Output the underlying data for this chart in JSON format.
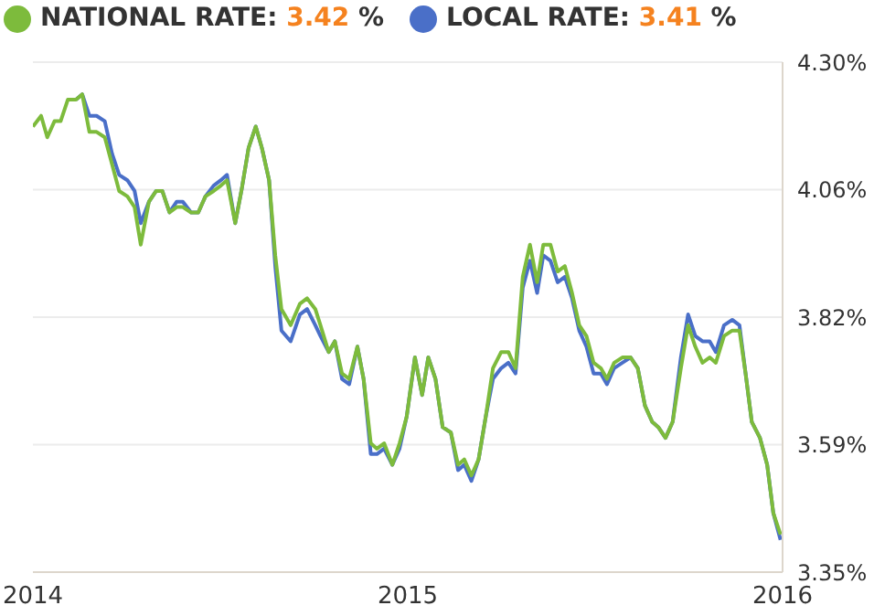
{
  "chart_data": {
    "type": "line",
    "x": [
      "2014-01-01",
      "2014-01-09",
      "2014-01-15",
      "2014-01-22",
      "2014-01-28",
      "2014-02-04",
      "2014-02-12",
      "2014-02-18",
      "2014-02-25",
      "2014-03-04",
      "2014-03-12",
      "2014-03-19",
      "2014-03-26",
      "2014-04-03",
      "2014-04-10",
      "2014-04-16",
      "2014-04-24",
      "2014-05-01",
      "2014-05-07",
      "2014-05-14",
      "2014-05-21",
      "2014-05-27",
      "2014-06-04",
      "2014-06-11",
      "2014-06-18",
      "2014-06-26",
      "2014-07-03",
      "2014-07-09",
      "2014-07-17",
      "2014-07-23",
      "2014-07-30",
      "2014-08-06",
      "2014-08-12",
      "2014-08-19",
      "2014-08-25",
      "2014-08-31",
      "2014-09-09",
      "2014-09-18",
      "2014-09-25",
      "2014-10-03",
      "2014-10-08",
      "2014-10-16",
      "2014-10-22",
      "2014-10-29",
      "2014-11-05",
      "2014-11-13",
      "2014-11-19",
      "2014-11-26",
      "2014-12-02",
      "2014-12-09",
      "2014-12-17",
      "2014-12-24",
      "2014-12-31",
      "2015-01-08",
      "2015-01-15",
      "2015-01-21",
      "2015-01-28",
      "2015-02-04",
      "2015-02-12",
      "2015-02-19",
      "2015-02-25",
      "2015-03-04",
      "2015-03-11",
      "2015-03-18",
      "2015-03-25",
      "2015-04-02",
      "2015-04-09",
      "2015-04-16",
      "2015-04-23",
      "2015-04-30",
      "2015-05-07",
      "2015-05-13",
      "2015-05-20",
      "2015-05-27",
      "2015-06-03",
      "2015-06-10",
      "2015-06-17",
      "2015-06-24",
      "2015-07-01",
      "2015-07-08",
      "2015-07-14",
      "2015-07-21",
      "2015-07-29",
      "2015-08-06",
      "2015-08-13",
      "2015-08-20",
      "2015-08-27",
      "2015-09-02",
      "2015-09-09",
      "2015-09-16",
      "2015-09-24",
      "2015-10-01",
      "2015-10-08",
      "2015-10-15",
      "2015-10-22",
      "2015-10-28",
      "2015-11-05",
      "2015-11-13",
      "2015-11-20",
      "2015-11-26",
      "2015-12-02",
      "2015-12-10",
      "2015-12-17",
      "2015-12-23",
      "2015-12-30"
    ],
    "series": [
      {
        "name": "NATIONAL RATE: 3.42 %",
        "color": "#7dbb3c",
        "values": [
          4.18,
          4.2,
          4.16,
          4.19,
          4.19,
          4.23,
          4.23,
          4.24,
          4.17,
          4.17,
          4.16,
          4.11,
          4.06,
          4.05,
          4.03,
          3.96,
          4.04,
          4.06,
          4.06,
          4.02,
          4.03,
          4.03,
          4.02,
          4.02,
          4.05,
          4.06,
          4.07,
          4.08,
          4.0,
          4.06,
          4.14,
          4.18,
          4.14,
          4.08,
          3.94,
          3.84,
          3.81,
          3.85,
          3.86,
          3.84,
          3.81,
          3.76,
          3.78,
          3.72,
          3.71,
          3.77,
          3.71,
          3.59,
          3.58,
          3.59,
          3.55,
          3.59,
          3.64,
          3.75,
          3.68,
          3.75,
          3.71,
          3.62,
          3.61,
          3.55,
          3.56,
          3.53,
          3.56,
          3.64,
          3.73,
          3.76,
          3.76,
          3.73,
          3.9,
          3.96,
          3.89,
          3.96,
          3.96,
          3.91,
          3.92,
          3.87,
          3.81,
          3.79,
          3.74,
          3.73,
          3.71,
          3.74,
          3.75,
          3.75,
          3.73,
          3.66,
          3.63,
          3.62,
          3.6,
          3.63,
          3.73,
          3.81,
          3.77,
          3.74,
          3.75,
          3.74,
          3.79,
          3.8,
          3.8,
          3.72,
          3.63,
          3.6,
          3.55,
          3.46,
          3.42
        ]
      },
      {
        "name": "LOCAL RATE: 3.41 %",
        "color": "#4a6fc8",
        "values": [
          null,
          null,
          null,
          null,
          null,
          null,
          4.23,
          4.24,
          4.2,
          4.2,
          4.19,
          4.13,
          4.09,
          4.08,
          4.06,
          4.0,
          4.04,
          4.06,
          4.06,
          4.02,
          4.04,
          4.04,
          4.02,
          4.02,
          4.05,
          4.07,
          4.08,
          4.09,
          4.0,
          4.06,
          4.14,
          4.18,
          4.14,
          4.08,
          3.92,
          3.8,
          3.78,
          3.83,
          3.84,
          3.81,
          3.79,
          3.76,
          3.78,
          3.71,
          3.7,
          3.77,
          3.71,
          3.57,
          3.57,
          3.58,
          3.55,
          3.58,
          3.64,
          3.75,
          3.68,
          3.75,
          3.71,
          3.62,
          3.61,
          3.54,
          3.55,
          3.52,
          3.56,
          3.64,
          3.71,
          3.73,
          3.74,
          3.72,
          3.88,
          3.93,
          3.87,
          3.94,
          3.93,
          3.89,
          3.9,
          3.86,
          3.8,
          3.77,
          3.72,
          3.72,
          3.7,
          3.73,
          3.74,
          3.75,
          3.73,
          3.66,
          3.63,
          3.62,
          3.6,
          3.63,
          3.75,
          3.83,
          3.79,
          3.78,
          3.78,
          3.76,
          3.81,
          3.82,
          3.81,
          3.72,
          3.63,
          3.6,
          3.55,
          3.46,
          3.41
        ]
      }
    ],
    "xlim": [
      "2014",
      "2016"
    ],
    "xticks": [
      "2014",
      "2015",
      "2016"
    ],
    "ylim": [
      3.35,
      4.3
    ],
    "yticks": [
      {
        "value": 3.35,
        "label": "3.35%"
      },
      {
        "value": 3.5875,
        "label": "3.59%"
      },
      {
        "value": 3.825,
        "label": "3.82%"
      },
      {
        "value": 4.0625,
        "label": "4.06%"
      },
      {
        "value": 4.3,
        "label": "4.30%"
      }
    ],
    "grid": "y",
    "legend": "top left",
    "marker": "none",
    "line_style": "solid"
  }
}
